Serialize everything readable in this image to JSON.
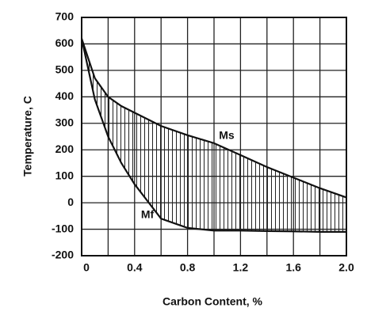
{
  "chart_data": {
    "type": "line",
    "x_label": "Carbon Content, %",
    "y_label": "Temperature, C",
    "x": [
      0,
      0.1,
      0.2,
      0.3,
      0.4,
      0.6,
      0.8,
      1.0,
      1.2,
      1.4,
      1.6,
      1.8,
      2.0
    ],
    "series": [
      {
        "name": "Ms",
        "color": "#111111",
        "values": [
          620,
          470,
          400,
          365,
          340,
          290,
          255,
          225,
          180,
          135,
          95,
          55,
          20
        ]
      },
      {
        "name": "Mf",
        "color": "#111111",
        "values": [
          620,
          390,
          250,
          150,
          70,
          -60,
          -95,
          -105,
          -105,
          -107,
          -108,
          -110,
          -110
        ]
      }
    ],
    "fill_between": true,
    "xlim": [
      0,
      2
    ],
    "ylim": [
      -200,
      700
    ],
    "xticks": [
      0,
      0.4,
      0.8,
      1.2,
      1.6,
      {
        "value": 2,
        "label": "2.0"
      }
    ],
    "xgrid_minor": [
      0.2,
      0.6,
      1.0,
      1.4,
      1.8
    ],
    "yticks": [
      -200,
      -100,
      0,
      100,
      200,
      300,
      400,
      500,
      600,
      700
    ],
    "grid": true
  }
}
